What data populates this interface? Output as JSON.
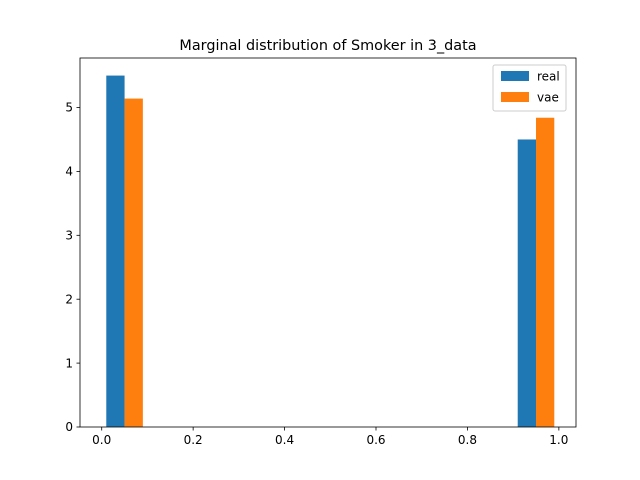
{
  "chart_data": {
    "type": "bar",
    "title": "Marginal distribution of Smoker in 3_data",
    "xlabel": "",
    "ylabel": "",
    "xlim": [
      -0.0475,
      1.0375
    ],
    "ylim": [
      0,
      5.775
    ],
    "xticks": [
      0.0,
      0.2,
      0.4,
      0.6,
      0.8,
      1.0
    ],
    "xtick_labels": [
      "0.0",
      "0.2",
      "0.4",
      "0.6",
      "0.8",
      "1.0"
    ],
    "yticks": [
      0,
      1,
      2,
      3,
      4,
      5
    ],
    "ytick_labels": [
      "0",
      "1",
      "2",
      "3",
      "4",
      "5"
    ],
    "grid": false,
    "legend_position": "top-right",
    "series": [
      {
        "name": "real",
        "color": "#1f77b4",
        "bins": [
          [
            0.01,
            0.05
          ],
          [
            0.91,
            0.95
          ]
        ],
        "values": [
          5.5,
          4.5
        ]
      },
      {
        "name": "vae",
        "color": "#ff7f0e",
        "bins": [
          [
            0.05,
            0.09
          ],
          [
            0.95,
            0.99
          ]
        ],
        "values": [
          5.14,
          4.84
        ]
      }
    ]
  }
}
